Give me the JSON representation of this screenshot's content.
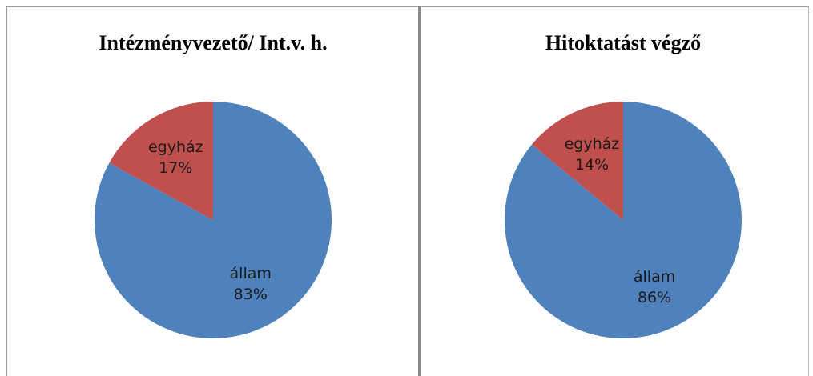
{
  "chart_data": [
    {
      "type": "pie",
      "title": "Intézményvezető/ Int.v. h.",
      "categories": [
        "állam",
        "egyház"
      ],
      "values": [
        83,
        17
      ],
      "value_labels": [
        "83%",
        "17%"
      ],
      "colors": [
        "#4f81bd",
        "#c0504d"
      ]
    },
    {
      "type": "pie",
      "title": "Hitoktatást végző",
      "categories": [
        "állam",
        "egyház"
      ],
      "values": [
        86,
        14
      ],
      "value_labels": [
        "86%",
        "14%"
      ],
      "colors": [
        "#4f81bd",
        "#c0504d"
      ]
    }
  ]
}
